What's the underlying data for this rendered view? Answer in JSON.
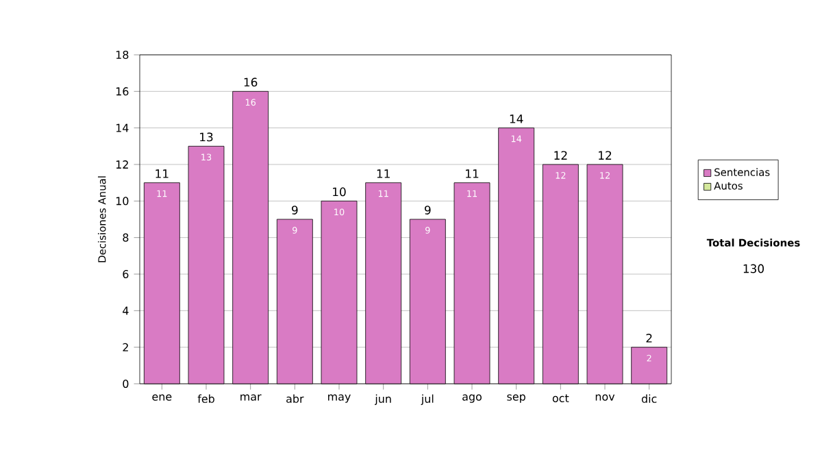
{
  "chart_data": {
    "type": "bar",
    "ylabel": "Decisiones Anual",
    "categories": [
      "ene",
      "feb",
      "mar",
      "abr",
      "may",
      "jun",
      "jul",
      "ago",
      "sep",
      "oct",
      "nov",
      "dic"
    ],
    "series": [
      {
        "name": "Sentencias",
        "color": "#d97bc4",
        "values": [
          11,
          13,
          16,
          9,
          10,
          11,
          9,
          11,
          14,
          12,
          12,
          2
        ]
      },
      {
        "name": "Autos",
        "color": "#d4e89c",
        "values": [
          null,
          null,
          null,
          null,
          null,
          null,
          null,
          null,
          null,
          null,
          null,
          null
        ]
      }
    ],
    "totals": [
      "11",
      "13",
      "16",
      "9",
      "10",
      "11",
      "9",
      "11",
      "14",
      "12",
      "12",
      "2"
    ],
    "data_labels": true,
    "ylim": [
      0,
      18
    ],
    "yticks": [
      0,
      2,
      4,
      6,
      8,
      10,
      12,
      14,
      16,
      18
    ],
    "grid": "y",
    "legend": "right",
    "annotations": [
      "Total Decisiones",
      "130"
    ]
  }
}
